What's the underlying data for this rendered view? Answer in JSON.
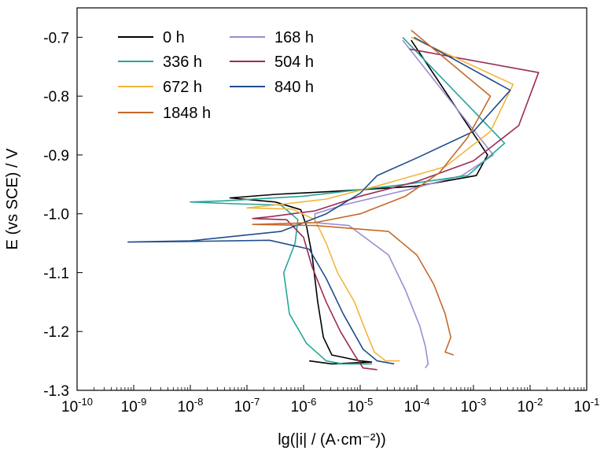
{
  "chart_data": {
    "type": "line",
    "title": "",
    "xlabel": "lg(|i| / (A·cm⁻²))",
    "ylabel": "E (vs SCE) / V",
    "x_scale": "log10",
    "xlim": [
      -10,
      -1
    ],
    "ylim": [
      -1.3,
      -0.65
    ],
    "x_ticks": [
      -10,
      -9,
      -8,
      -7,
      -6,
      -5,
      -4,
      -3,
      -2,
      -1
    ],
    "x_tick_labels": [
      "10-10",
      "10-9",
      "10-8",
      "10-7",
      "10-6",
      "10-5",
      "10-4",
      "10-3",
      "10-2",
      "10-1"
    ],
    "y_ticks": [
      -0.7,
      -0.8,
      -0.9,
      -1.0,
      -1.1,
      -1.2,
      -1.3
    ],
    "y_tick_labels": [
      "-0.7",
      "-0.8",
      "-0.9",
      "-1.0",
      "-1.1",
      "-1.2",
      "-1.3"
    ],
    "legend_position": "top-left",
    "grid": false,
    "series": [
      {
        "name": "0 h",
        "color": "#000000",
        "points": [
          [
            -4.1,
            -0.705
          ],
          [
            -2.75,
            -0.9
          ],
          [
            -2.95,
            -0.935
          ],
          [
            -4.0,
            -0.953
          ],
          [
            -5.5,
            -0.962
          ],
          [
            -6.5,
            -0.967
          ],
          [
            -7.3,
            -0.973
          ],
          [
            -6.5,
            -0.98
          ],
          [
            -6.05,
            -0.993
          ],
          [
            -5.95,
            -1.02
          ],
          [
            -5.85,
            -1.07
          ],
          [
            -5.75,
            -1.15
          ],
          [
            -5.65,
            -1.21
          ],
          [
            -5.5,
            -1.24
          ],
          [
            -5.0,
            -1.25
          ],
          [
            -4.8,
            -1.252
          ],
          [
            -5.5,
            -1.255
          ],
          [
            -5.9,
            -1.25
          ]
        ]
      },
      {
        "name": "168 h",
        "color": "#9b8ed0",
        "points": [
          [
            -4.25,
            -0.705
          ],
          [
            -2.65,
            -0.9
          ],
          [
            -3.2,
            -0.935
          ],
          [
            -4.2,
            -0.96
          ],
          [
            -5.3,
            -0.985
          ],
          [
            -5.8,
            -1.0
          ],
          [
            -5.8,
            -1.015
          ],
          [
            -5.2,
            -1.02
          ],
          [
            -4.5,
            -1.07
          ],
          [
            -4.2,
            -1.13
          ],
          [
            -3.95,
            -1.19
          ],
          [
            -3.85,
            -1.225
          ],
          [
            -3.8,
            -1.255
          ],
          [
            -3.85,
            -1.262
          ]
        ]
      },
      {
        "name": "336 h",
        "color": "#26a69a",
        "points": [
          [
            -4.25,
            -0.7
          ],
          [
            -2.45,
            -0.88
          ],
          [
            -3.1,
            -0.935
          ],
          [
            -4.2,
            -0.95
          ],
          [
            -6.0,
            -0.97
          ],
          [
            -7.4,
            -0.978
          ],
          [
            -8.0,
            -0.98
          ],
          [
            -7.2,
            -0.983
          ],
          [
            -6.4,
            -0.985
          ],
          [
            -6.1,
            -1.01
          ],
          [
            -6.15,
            -1.05
          ],
          [
            -6.35,
            -1.1
          ],
          [
            -6.25,
            -1.17
          ],
          [
            -5.95,
            -1.22
          ],
          [
            -5.6,
            -1.25
          ],
          [
            -5.3,
            -1.255
          ],
          [
            -4.8,
            -1.255
          ],
          [
            -5.4,
            -1.255
          ]
        ]
      },
      {
        "name": "504 h",
        "color": "#9b2b55",
        "points": [
          [
            -4.13,
            -0.72
          ],
          [
            -1.85,
            -0.76
          ],
          [
            -2.2,
            -0.85
          ],
          [
            -3.0,
            -0.91
          ],
          [
            -4.0,
            -0.945
          ],
          [
            -5.0,
            -0.97
          ],
          [
            -5.8,
            -0.995
          ],
          [
            -6.6,
            -1.005
          ],
          [
            -6.9,
            -1.008
          ],
          [
            -6.3,
            -1.01
          ],
          [
            -6.0,
            -1.04
          ],
          [
            -5.85,
            -1.09
          ],
          [
            -5.6,
            -1.15
          ],
          [
            -5.35,
            -1.2
          ],
          [
            -5.1,
            -1.24
          ],
          [
            -4.95,
            -1.262
          ],
          [
            -4.7,
            -1.265
          ]
        ]
      },
      {
        "name": "672 h",
        "color": "#f1b63c",
        "points": [
          [
            -4.1,
            -0.7
          ],
          [
            -2.3,
            -0.78
          ],
          [
            -2.7,
            -0.86
          ],
          [
            -3.5,
            -0.92
          ],
          [
            -4.6,
            -0.95
          ],
          [
            -5.6,
            -0.975
          ],
          [
            -6.5,
            -0.985
          ],
          [
            -7.0,
            -0.99
          ],
          [
            -6.2,
            -0.992
          ],
          [
            -5.8,
            -1.01
          ],
          [
            -5.6,
            -1.05
          ],
          [
            -5.4,
            -1.1
          ],
          [
            -5.1,
            -1.15
          ],
          [
            -4.9,
            -1.2
          ],
          [
            -4.75,
            -1.235
          ],
          [
            -4.55,
            -1.25
          ],
          [
            -4.3,
            -1.25
          ]
        ]
      },
      {
        "name": "840 h",
        "color": "#1f4e8c",
        "points": [
          [
            -4.05,
            -0.7
          ],
          [
            -2.35,
            -0.79
          ],
          [
            -3.0,
            -0.86
          ],
          [
            -4.0,
            -0.905
          ],
          [
            -4.7,
            -0.935
          ],
          [
            -5.0,
            -0.965
          ],
          [
            -5.6,
            -1.0
          ],
          [
            -6.4,
            -1.03
          ],
          [
            -8.0,
            -1.046
          ],
          [
            -9.1,
            -1.048
          ],
          [
            -8.0,
            -1.047
          ],
          [
            -6.6,
            -1.045
          ],
          [
            -5.9,
            -1.06
          ],
          [
            -5.6,
            -1.11
          ],
          [
            -5.3,
            -1.17
          ],
          [
            -4.95,
            -1.23
          ],
          [
            -4.7,
            -1.25
          ],
          [
            -4.4,
            -1.255
          ]
        ]
      },
      {
        "name": "1848 h",
        "color": "#c46a2a",
        "points": [
          [
            -4.1,
            -0.688
          ],
          [
            -2.7,
            -0.8
          ],
          [
            -3.1,
            -0.87
          ],
          [
            -3.6,
            -0.93
          ],
          [
            -4.2,
            -0.97
          ],
          [
            -5.0,
            -1.0
          ],
          [
            -5.8,
            -1.015
          ],
          [
            -6.9,
            -1.018
          ],
          [
            -5.8,
            -1.02
          ],
          [
            -4.5,
            -1.03
          ],
          [
            -4.0,
            -1.07
          ],
          [
            -3.7,
            -1.12
          ],
          [
            -3.5,
            -1.17
          ],
          [
            -3.4,
            -1.21
          ],
          [
            -3.5,
            -1.235
          ],
          [
            -3.35,
            -1.24
          ]
        ]
      }
    ]
  }
}
